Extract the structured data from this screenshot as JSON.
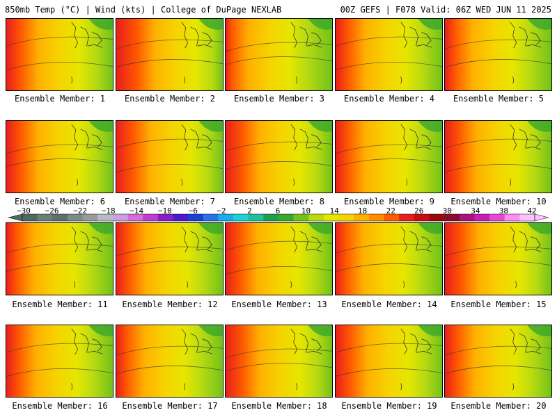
{
  "header": {
    "left": "850mb Temp (°C) | Wind (kts) | College of DuPage NEXLAB",
    "right": "00Z GEFS | F078 Valid: 06Z WED JUN 11 2025"
  },
  "panels": [
    {
      "label": "Ensemble Member: 1",
      "warmth": 0.55
    },
    {
      "label": "Ensemble Member: 2",
      "warmth": 0.7
    },
    {
      "label": "Ensemble Member: 3",
      "warmth": 0.35
    },
    {
      "label": "Ensemble Member: 4",
      "warmth": 0.5
    },
    {
      "label": "Ensemble Member: 5",
      "warmth": 0.45
    },
    {
      "label": "Ensemble Member: 6",
      "warmth": 0.55
    },
    {
      "label": "Ensemble Member: 7",
      "warmth": 0.6
    },
    {
      "label": "Ensemble Member: 8",
      "warmth": 0.6
    },
    {
      "label": "Ensemble Member: 9",
      "warmth": 0.5
    },
    {
      "label": "Ensemble Member: 10",
      "warmth": 0.55
    },
    {
      "label": "Ensemble Member: 11",
      "warmth": 0.45
    },
    {
      "label": "Ensemble Member: 12",
      "warmth": 0.5
    },
    {
      "label": "Ensemble Member: 13",
      "warmth": 0.55
    },
    {
      "label": "Ensemble Member: 14",
      "warmth": 0.45
    },
    {
      "label": "Ensemble Member: 15",
      "warmth": 0.6
    },
    {
      "label": "Ensemble Member: 16",
      "warmth": 0.5
    },
    {
      "label": "Ensemble Member: 17",
      "warmth": 0.45
    },
    {
      "label": "Ensemble Member: 18",
      "warmth": 0.6
    },
    {
      "label": "Ensemble Member: 19",
      "warmth": 0.55
    },
    {
      "label": "Ensemble Member: 20",
      "warmth": 0.5
    }
  ],
  "colorbar": {
    "labels": [
      "−30",
      "−26",
      "−22",
      "−18",
      "−14",
      "−10",
      "−6",
      "−2",
      "2",
      "6",
      "10",
      "14",
      "18",
      "22",
      "26",
      "30",
      "34",
      "38",
      "42"
    ],
    "colors": [
      "#4d6b5e",
      "#6b7f73",
      "#5f6f69",
      "#7f8a86",
      "#9a9a9a",
      "#b9b9c6",
      "#c9a0dc",
      "#d66bd9",
      "#c23cd0",
      "#8a1fc8",
      "#4b1cc9",
      "#1b3fd6",
      "#2a6fe6",
      "#19aee8",
      "#19d1d6",
      "#1fbf9c",
      "#1e9e4e",
      "#3aa82c",
      "#73c21a",
      "#b7da12",
      "#e6e600",
      "#f5d400",
      "#ffb000",
      "#ff8c00",
      "#ff5a00",
      "#e81e1e",
      "#c80e0e",
      "#9a0a0a",
      "#8a0c2c",
      "#a8147a",
      "#c81eb4",
      "#e64ad2",
      "#ff8cf0",
      "#ffc0ff"
    ]
  }
}
